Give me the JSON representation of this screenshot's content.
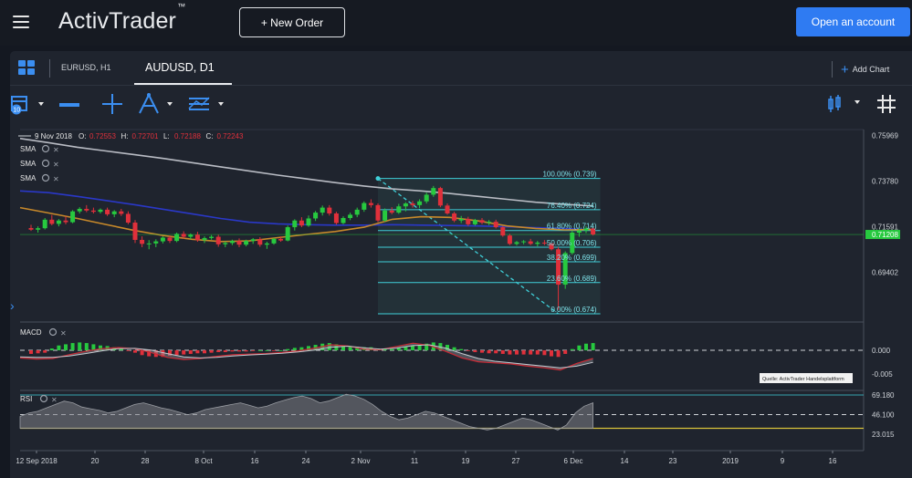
{
  "header": {
    "logo": "ActivTrader",
    "logo_tm": "™",
    "new_order": "+ New Order",
    "open_account": "Open an account"
  },
  "tabs": [
    {
      "label": "EURUSD, H1",
      "active": false
    },
    {
      "label": "AUDUSD, D1",
      "active": true
    }
  ],
  "add_chart": "Add Chart",
  "ohlc": {
    "date": "9 Nov 2018",
    "o_label": "O:",
    "o": "0.72553",
    "h_label": "H:",
    "h": "0.72701",
    "l_label": "L:",
    "l": "0.72188",
    "c_label": "C:",
    "c": "0.72243"
  },
  "indicators": {
    "sma": [
      "SMA",
      "SMA",
      "SMA"
    ],
    "macd": "MACD",
    "rsi": "RSI"
  },
  "colors": {
    "up": "#27c93f",
    "down": "#e0303b",
    "accent": "#2f7bf2",
    "fib": "#3fd0d9",
    "sma_fast": "#c8892a",
    "sma_mid": "#2a38c8",
    "sma_slow": "#b9bcc4",
    "rsi_line": "#d8c23a"
  },
  "chart_data": [
    {
      "type": "candlestick",
      "title": "AUDUSD, D1",
      "x_ticks": [
        "12 Sep 2018",
        "20",
        "28",
        "8 Oct",
        "16",
        "24",
        "2 Nov",
        "11",
        "19",
        "27",
        "6 Dec",
        "14",
        "23",
        "2019",
        "9",
        "16"
      ],
      "y_ticks": [
        "0.75969",
        "0.73780",
        "0.71591",
        "0.69402"
      ],
      "current_price": "0.71208",
      "ylim": [
        0.6705,
        0.7625
      ],
      "fibonacci": [
        {
          "label": "100.00% (0.739)",
          "value": 0.739
        },
        {
          "label": "76.40% (0.724)",
          "value": 0.724
        },
        {
          "label": "61.80% (0.714)",
          "value": 0.714
        },
        {
          "label": "50.00% (0.706)",
          "value": 0.706
        },
        {
          "label": "38.20% (0.699)",
          "value": 0.699
        },
        {
          "label": "23.60% (0.689)",
          "value": 0.689
        },
        {
          "label": "0.00% (0.674)",
          "value": 0.674
        }
      ],
      "candles": [
        [
          0.7152,
          0.7168,
          0.7138,
          0.7144
        ],
        [
          0.7144,
          0.716,
          0.713,
          0.7151
        ],
        [
          0.7151,
          0.72,
          0.7145,
          0.7192
        ],
        [
          0.7192,
          0.7215,
          0.7165,
          0.7172
        ],
        [
          0.7172,
          0.7195,
          0.716,
          0.7188
        ],
        [
          0.7188,
          0.7208,
          0.717,
          0.718
        ],
        [
          0.718,
          0.7238,
          0.7175,
          0.7232
        ],
        [
          0.7232,
          0.7252,
          0.7222,
          0.7244
        ],
        [
          0.7244,
          0.7262,
          0.7228,
          0.7236
        ],
        [
          0.7236,
          0.725,
          0.7222,
          0.723
        ],
        [
          0.723,
          0.7246,
          0.7222,
          0.724
        ],
        [
          0.724,
          0.725,
          0.721,
          0.7218
        ],
        [
          0.7218,
          0.7238,
          0.7204,
          0.7232
        ],
        [
          0.7232,
          0.7244,
          0.721,
          0.722
        ],
        [
          0.722,
          0.7232,
          0.717,
          0.7178
        ],
        [
          0.7178,
          0.719,
          0.708,
          0.7095
        ],
        [
          0.7095,
          0.7112,
          0.706,
          0.7076
        ],
        [
          0.7076,
          0.7094,
          0.705,
          0.7078
        ],
        [
          0.7078,
          0.7098,
          0.706,
          0.7088
        ],
        [
          0.7088,
          0.7112,
          0.7078,
          0.7106
        ],
        [
          0.7106,
          0.7116,
          0.708,
          0.709
        ],
        [
          0.709,
          0.713,
          0.7084,
          0.7124
        ],
        [
          0.7124,
          0.7136,
          0.71,
          0.711
        ],
        [
          0.711,
          0.7126,
          0.7098,
          0.712
        ],
        [
          0.712,
          0.7134,
          0.7086,
          0.7094
        ],
        [
          0.7094,
          0.7112,
          0.708,
          0.7104
        ],
        [
          0.7104,
          0.7118,
          0.7096,
          0.711
        ],
        [
          0.711,
          0.712,
          0.7062,
          0.7074
        ],
        [
          0.7074,
          0.7088,
          0.706,
          0.708
        ],
        [
          0.708,
          0.7096,
          0.707,
          0.709
        ],
        [
          0.709,
          0.7102,
          0.706,
          0.7072
        ],
        [
          0.7072,
          0.7096,
          0.7064,
          0.709
        ],
        [
          0.709,
          0.7104,
          0.7076,
          0.7098
        ],
        [
          0.7098,
          0.7108,
          0.7062,
          0.7072
        ],
        [
          0.7072,
          0.7086,
          0.7052,
          0.7078
        ],
        [
          0.7078,
          0.7104,
          0.7072,
          0.71
        ],
        [
          0.71,
          0.7112,
          0.7086,
          0.7092
        ],
        [
          0.7092,
          0.7164,
          0.7088,
          0.7156
        ],
        [
          0.7156,
          0.7194,
          0.714,
          0.7188
        ],
        [
          0.7188,
          0.7204,
          0.7156,
          0.7164
        ],
        [
          0.7164,
          0.7212,
          0.7158,
          0.7198
        ],
        [
          0.7198,
          0.7234,
          0.7186,
          0.7226
        ],
        [
          0.7226,
          0.726,
          0.7212,
          0.725
        ],
        [
          0.725,
          0.7262,
          0.7212,
          0.7222
        ],
        [
          0.7222,
          0.723,
          0.7168,
          0.7176
        ],
        [
          0.7176,
          0.7208,
          0.717,
          0.72
        ],
        [
          0.72,
          0.7226,
          0.719,
          0.7216
        ],
        [
          0.7216,
          0.725,
          0.7204,
          0.724
        ],
        [
          0.724,
          0.728,
          0.723,
          0.7272
        ],
        [
          0.7272,
          0.729,
          0.725,
          0.7262
        ],
        [
          0.7262,
          0.727,
          0.718,
          0.7188
        ],
        [
          0.7188,
          0.7246,
          0.7182,
          0.7236
        ],
        [
          0.7236,
          0.7252,
          0.7218,
          0.7226
        ],
        [
          0.7226,
          0.7268,
          0.722,
          0.7256
        ],
        [
          0.7256,
          0.7276,
          0.7232,
          0.727
        ],
        [
          0.727,
          0.7282,
          0.725,
          0.7262
        ],
        [
          0.7262,
          0.729,
          0.7248,
          0.728
        ],
        [
          0.728,
          0.7322,
          0.727,
          0.7312
        ],
        [
          0.7312,
          0.7354,
          0.7302,
          0.7344
        ],
        [
          0.7344,
          0.735,
          0.7252,
          0.726
        ],
        [
          0.726,
          0.727,
          0.7216,
          0.7222
        ],
        [
          0.7222,
          0.723,
          0.718,
          0.7188
        ],
        [
          0.7188,
          0.721,
          0.7176,
          0.7196
        ],
        [
          0.7196,
          0.7206,
          0.7162,
          0.717
        ],
        [
          0.717,
          0.7196,
          0.7164,
          0.719
        ],
        [
          0.719,
          0.72,
          0.717,
          0.7178
        ],
        [
          0.7178,
          0.719,
          0.7166,
          0.7182
        ],
        [
          0.7182,
          0.7192,
          0.715,
          0.7156
        ],
        [
          0.7156,
          0.716,
          0.711,
          0.7116
        ],
        [
          0.7116,
          0.7124,
          0.707,
          0.7076
        ],
        [
          0.7076,
          0.709,
          0.7068,
          0.7084
        ],
        [
          0.7084,
          0.7094,
          0.7074,
          0.7088
        ],
        [
          0.7088,
          0.71,
          0.707,
          0.7076
        ],
        [
          0.7076,
          0.709,
          0.7064,
          0.7082
        ],
        [
          0.7082,
          0.7094,
          0.707,
          0.7078
        ],
        [
          0.7078,
          0.708,
          0.7044,
          0.705
        ],
        [
          0.705,
          0.706,
          0.676,
          0.688
        ],
        [
          0.688,
          0.704,
          0.686,
          0.7032
        ],
        [
          0.7032,
          0.714,
          0.7024,
          0.713
        ],
        [
          0.713,
          0.715,
          0.711,
          0.714
        ],
        [
          0.714,
          0.716,
          0.7128,
          0.715
        ],
        [
          0.715,
          0.7156,
          0.7116,
          0.7121
        ]
      ],
      "sma_fast": [
        0.725,
        0.7224,
        0.7198,
        0.7169,
        0.714,
        0.7116,
        0.7098,
        0.7087,
        0.709,
        0.7106,
        0.7121,
        0.7135,
        0.7156,
        0.7194,
        0.7206,
        0.7203,
        0.7186,
        0.7162,
        0.715,
        0.7143,
        0.7145
      ],
      "sma_mid": [
        0.733,
        0.7322,
        0.7304,
        0.7284,
        0.7264,
        0.7242,
        0.722,
        0.7198,
        0.718,
        0.7172,
        0.7168,
        0.7166,
        0.7166,
        0.7168,
        0.7166,
        0.7164,
        0.7162,
        0.7158,
        0.7154,
        0.715,
        0.7143
      ],
      "sma_slow": [
        0.7582,
        0.7562,
        0.754,
        0.7522,
        0.7504,
        0.7486,
        0.7466,
        0.7446,
        0.7426,
        0.7406,
        0.7388,
        0.737,
        0.7354,
        0.734,
        0.733,
        0.7318,
        0.7304,
        0.729,
        0.7276,
        0.7266,
        0.7258
      ]
    },
    {
      "type": "bar",
      "title": "MACD",
      "y_ticks": [
        "0.000",
        "-0.005"
      ],
      "annotation": "Quelle: ActivTrader Handelsplattform",
      "histogram": [
        -0.0006,
        -0.0005,
        -0.0004,
        0.0003,
        0.0008,
        0.001,
        0.0012,
        0.0013,
        0.0012,
        0.001,
        0.0008,
        0.0007,
        0.0005,
        0.0003,
        -0.0001,
        -0.0004,
        -0.0008,
        -0.001,
        -0.0011,
        -0.0011,
        -0.0009,
        -0.0008,
        -0.0007,
        -0.0006,
        -0.0005,
        -0.0005,
        -0.0004,
        -0.0003,
        -0.0003,
        -0.0002,
        -0.0002,
        -0.0002,
        -0.0001,
        0,
        0,
        -0.0001,
        0,
        0.0002,
        0.0004,
        0.0005,
        0.0007,
        0.0009,
        0.0011,
        0.0012,
        0.001,
        0.0008,
        0.0007,
        0.0006,
        0.0005,
        0.0005,
        0.0003,
        0.0002,
        0.0002,
        0.0004,
        0.0006,
        0.0008,
        0.0009,
        0.0011,
        0.0013,
        0.0012,
        0.0009,
        0.0005,
        0.0002,
        -0.0001,
        -0.0003,
        -0.0004,
        -0.0005,
        -0.0005,
        -0.0006,
        -0.0007,
        -0.0007,
        -0.0007,
        -0.0007,
        -0.0007,
        -0.0008,
        -0.001,
        -0.0011,
        -0.0006,
        0.0002,
        0.0008,
        0.0011,
        0.0012
      ],
      "macd": [
        -0.0028,
        -0.0032,
        -0.003,
        -0.0016,
        -0.0004,
        0.0006,
        0.001,
        0.0006,
        -0.0008,
        -0.0026,
        -0.0034,
        -0.003,
        -0.0022,
        -0.0016,
        -0.0014,
        -0.0012,
        -0.0008,
        -0.0002,
        0.0008,
        0.002,
        0.0016,
        0.0004,
        0.0002,
        0.0014,
        0.0026,
        0.0018,
        -0.0004,
        -0.0028,
        -0.0042,
        -0.0046,
        -0.005,
        -0.0058,
        -0.0064,
        -0.0072,
        -0.0048,
        -0.003
      ],
      "signal": [
        -0.0024,
        -0.0026,
        -0.0026,
        -0.0021,
        -0.0012,
        -0.0002,
        0.0006,
        0.0007,
        0.0001,
        -0.0012,
        -0.0024,
        -0.0028,
        -0.0026,
        -0.0021,
        -0.0017,
        -0.0014,
        -0.0011,
        -0.0006,
        0.0001,
        0.0011,
        0.0015,
        0.0009,
        0.0004,
        0.0008,
        0.0017,
        0.002,
        0.0008,
        -0.0012,
        -0.003,
        -0.004,
        -0.0046,
        -0.0052,
        -0.0058,
        -0.0064,
        -0.0058,
        -0.0044
      ]
    },
    {
      "type": "area",
      "title": "RSI",
      "y_ticks": [
        "69.180",
        "46.100",
        "23.015"
      ],
      "values": [
        44,
        48,
        50,
        54,
        58,
        62,
        60,
        55,
        53,
        51,
        48,
        50,
        54,
        58,
        60,
        57,
        54,
        52,
        49,
        46,
        48,
        52,
        54,
        56,
        58,
        60,
        57,
        54,
        56,
        60,
        63,
        66,
        68,
        65,
        60,
        62,
        66,
        70,
        68,
        64,
        58,
        50,
        44,
        40,
        42,
        46,
        50,
        48,
        44,
        40,
        36,
        32,
        30,
        28,
        30,
        34,
        38,
        42,
        40,
        36,
        32,
        28,
        34,
        48,
        56,
        60
      ]
    }
  ]
}
